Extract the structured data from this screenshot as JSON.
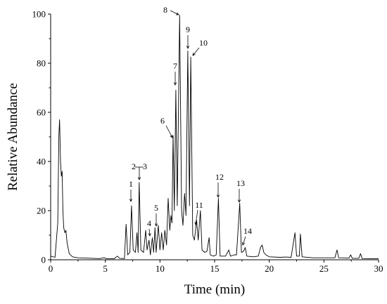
{
  "chart_data": {
    "type": "line",
    "xlabel": "Time (min)",
    "ylabel": "Relative Abundance",
    "xlim": [
      0,
      30
    ],
    "ylim": [
      0,
      100
    ],
    "xticks": [
      0,
      5,
      10,
      15,
      20,
      25,
      30
    ],
    "yticks": [
      0,
      20,
      40,
      60,
      80,
      100
    ],
    "series": [
      {
        "points": [
          [
            0.0,
            1.5
          ],
          [
            0.4,
            1.0
          ],
          [
            0.65,
            15
          ],
          [
            0.75,
            51
          ],
          [
            0.82,
            57
          ],
          [
            0.9,
            40
          ],
          [
            0.98,
            34
          ],
          [
            1.05,
            36
          ],
          [
            1.12,
            20
          ],
          [
            1.2,
            13
          ],
          [
            1.3,
            11
          ],
          [
            1.4,
            12
          ],
          [
            1.5,
            7
          ],
          [
            1.7,
            2.5
          ],
          [
            2.0,
            1.2
          ],
          [
            2.5,
            0.8
          ],
          [
            4.5,
            0.5
          ],
          [
            4.9,
            0.9
          ],
          [
            5.1,
            0.4
          ],
          [
            5.8,
            0.4
          ],
          [
            6.1,
            1.5
          ],
          [
            6.3,
            0.6
          ],
          [
            6.75,
            0.5
          ],
          [
            6.9,
            14.5
          ],
          [
            7.05,
            2
          ],
          [
            7.25,
            3
          ],
          [
            7.4,
            22
          ],
          [
            7.55,
            4
          ],
          [
            7.75,
            3
          ],
          [
            7.9,
            11
          ],
          [
            8.0,
            3
          ],
          [
            8.1,
            31.5
          ],
          [
            8.25,
            4
          ],
          [
            8.5,
            3
          ],
          [
            8.7,
            12
          ],
          [
            8.82,
            4
          ],
          [
            9.0,
            8
          ],
          [
            9.12,
            2
          ],
          [
            9.3,
            9
          ],
          [
            9.42,
            3
          ],
          [
            9.55,
            13
          ],
          [
            9.65,
            3
          ],
          [
            9.85,
            14
          ],
          [
            10.0,
            4
          ],
          [
            10.15,
            11
          ],
          [
            10.3,
            4
          ],
          [
            10.45,
            12
          ],
          [
            10.6,
            6
          ],
          [
            10.75,
            25
          ],
          [
            10.9,
            12
          ],
          [
            11.0,
            18
          ],
          [
            11.1,
            15
          ],
          [
            11.2,
            50.5
          ],
          [
            11.32,
            20
          ],
          [
            11.45,
            69
          ],
          [
            11.58,
            22
          ],
          [
            11.8,
            99.5
          ],
          [
            11.98,
            20
          ],
          [
            12.1,
            14
          ],
          [
            12.25,
            27
          ],
          [
            12.38,
            18
          ],
          [
            12.55,
            85
          ],
          [
            12.7,
            22
          ],
          [
            12.82,
            82.5
          ],
          [
            13.0,
            10
          ],
          [
            13.15,
            8
          ],
          [
            13.35,
            16
          ],
          [
            13.5,
            8
          ],
          [
            13.7,
            20
          ],
          [
            13.85,
            4
          ],
          [
            14.1,
            3
          ],
          [
            14.3,
            3.5
          ],
          [
            14.5,
            9
          ],
          [
            14.6,
            2
          ],
          [
            14.9,
            1.5
          ],
          [
            15.15,
            2
          ],
          [
            15.35,
            25
          ],
          [
            15.5,
            1.5
          ],
          [
            15.8,
            1.5
          ],
          [
            16.0,
            1.5
          ],
          [
            16.3,
            4
          ],
          [
            16.45,
            1.5
          ],
          [
            16.8,
            2
          ],
          [
            17.0,
            2
          ],
          [
            17.3,
            23
          ],
          [
            17.45,
            3
          ],
          [
            17.65,
            3.5
          ],
          [
            17.8,
            5
          ],
          [
            17.95,
            1.5
          ],
          [
            18.5,
            1.2
          ],
          [
            19.0,
            1.5
          ],
          [
            19.2,
            5
          ],
          [
            19.35,
            6
          ],
          [
            19.5,
            3
          ],
          [
            19.7,
            2
          ],
          [
            20.0,
            1.2
          ],
          [
            21.0,
            1.0
          ],
          [
            21.5,
            1.1
          ],
          [
            22.0,
            1.0
          ],
          [
            22.35,
            11
          ],
          [
            22.5,
            1.5
          ],
          [
            22.75,
            1.5
          ],
          [
            22.85,
            10.5
          ],
          [
            23.0,
            1.2
          ],
          [
            24.0,
            0.8
          ],
          [
            26.0,
            0.8
          ],
          [
            26.2,
            4
          ],
          [
            26.35,
            0.8
          ],
          [
            27.3,
            0.7
          ],
          [
            27.45,
            2
          ],
          [
            27.6,
            0.6
          ],
          [
            28.2,
            0.6
          ],
          [
            28.35,
            2.5
          ],
          [
            28.5,
            0.5
          ],
          [
            30.0,
            0.4
          ]
        ]
      }
    ],
    "peak_labels": [
      {
        "text": "1",
        "x": 7.4,
        "y": 22
      },
      {
        "text": "2",
        "x": 8.1,
        "y": 31.5
      },
      {
        "text": "3",
        "x": 8.1,
        "y": 31.5
      },
      {
        "text": "4",
        "x": 9.3,
        "y": 9
      },
      {
        "text": "5",
        "x": 9.55,
        "y": 13
      },
      {
        "text": "6",
        "x": 11.2,
        "y": 50.5
      },
      {
        "text": "7",
        "x": 11.45,
        "y": 69
      },
      {
        "text": "8",
        "x": 11.8,
        "y": 99.5
      },
      {
        "text": "9",
        "x": 12.55,
        "y": 85
      },
      {
        "text": "10",
        "x": 12.82,
        "y": 82.5
      },
      {
        "text": "11",
        "x": 13.35,
        "y": 16
      },
      {
        "text": "12",
        "x": 15.35,
        "y": 25
      },
      {
        "text": "13",
        "x": 17.3,
        "y": 23
      },
      {
        "text": "14",
        "x": 17.65,
        "y": 3.5
      }
    ]
  }
}
